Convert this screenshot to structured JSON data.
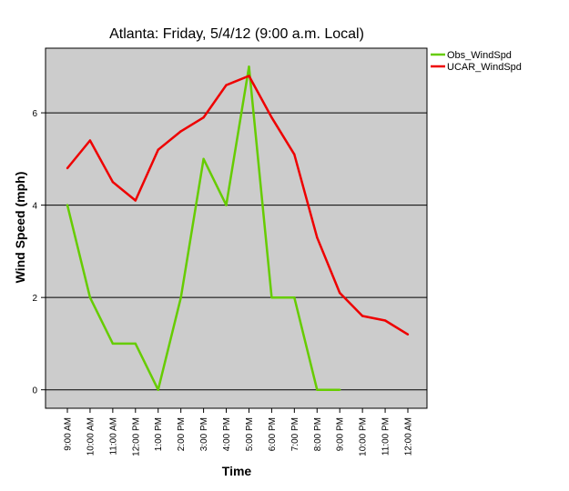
{
  "chart_data": {
    "type": "line",
    "title": "Atlanta: Friday, 5/4/12 (9:00 a.m. Local)",
    "xlabel": "Time",
    "ylabel": "Wind Speed (mph)",
    "ylim": [
      -0.4,
      7.4
    ],
    "yticks": [
      "0",
      "2",
      "4",
      "6"
    ],
    "grid": "horizontal",
    "legend": "top-right",
    "plot_background": "#cccccc",
    "categories": [
      "9:00 AM",
      "10:00 AM",
      "11:00 AM",
      "12:00 PM",
      "1:00 PM",
      "2:00 PM",
      "3:00 PM",
      "4:00 PM",
      "5:00 PM",
      "6:00 PM",
      "7:00 PM",
      "8:00 PM",
      "9:00 PM",
      "10:00 PM",
      "11:00 PM",
      "12:00 AM"
    ],
    "series": [
      {
        "name": "Obs_WindSpd",
        "color": "#66cc00",
        "values": [
          4,
          2,
          1,
          1,
          0,
          2,
          5,
          4,
          7,
          2,
          2,
          0,
          0,
          null,
          null,
          null
        ]
      },
      {
        "name": "UCAR_WindSpd",
        "color": "#ee0000",
        "values": [
          4.8,
          5.4,
          4.5,
          4.1,
          5.2,
          5.6,
          5.9,
          6.6,
          6.8,
          5.9,
          5.1,
          3.3,
          2.1,
          1.6,
          1.5,
          1.2
        ]
      }
    ]
  }
}
